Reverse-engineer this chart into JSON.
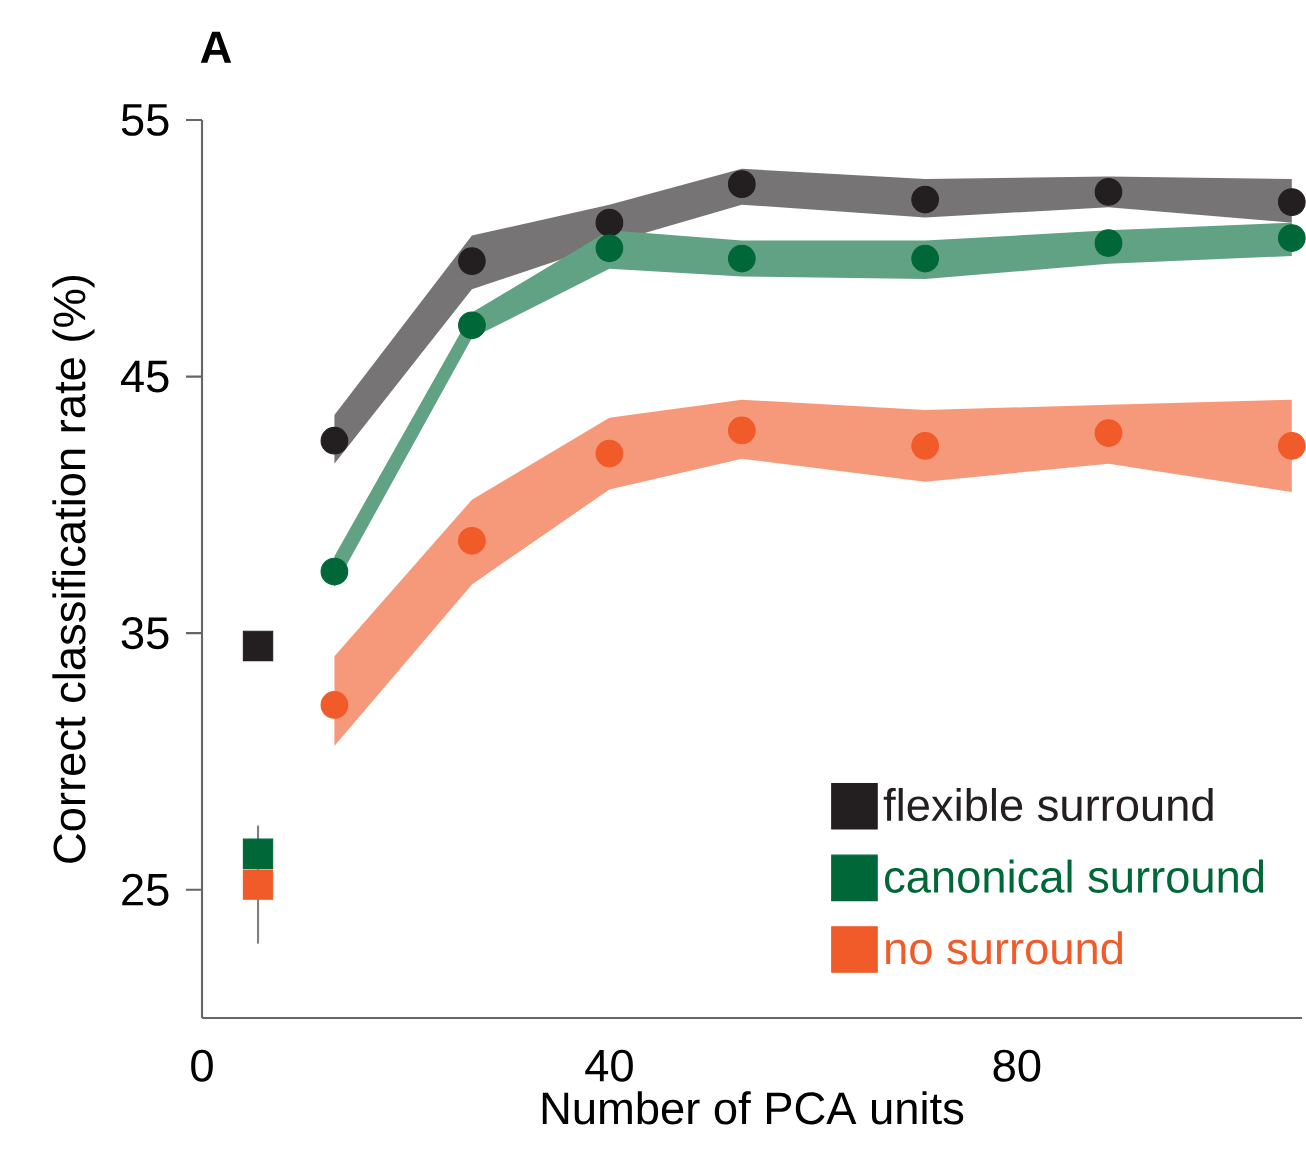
{
  "chart_data": {
    "type": "scatter",
    "title": "A",
    "xlabel": "Number of PCA units",
    "ylabel": "Correct classification rate (%)",
    "xlim": [
      0,
      108
    ],
    "xticks": [
      0,
      40,
      80
    ],
    "ylim": [
      20,
      55
    ],
    "yticks": [
      25,
      35,
      45,
      55
    ],
    "legend": "bottom right",
    "marker": "circle",
    "grid": false,
    "series": [
      {
        "name": "flexible surround",
        "color": "#231f20",
        "x": [
          13,
          26.5,
          40,
          53,
          71,
          89,
          107
        ],
        "values": [
          42.5,
          49.5,
          51.0,
          52.5,
          51.9,
          52.2,
          51.8
        ],
        "lower": [
          41.6,
          48.4,
          50.2,
          51.7,
          51.2,
          51.6,
          51.0
        ],
        "upper": [
          43.5,
          50.5,
          51.7,
          53.1,
          52.7,
          52.8,
          52.7
        ]
      },
      {
        "name": "canonical surround",
        "color": "#006838",
        "x": [
          13,
          26.5,
          40,
          53,
          71,
          89,
          107
        ],
        "values": [
          37.4,
          47.0,
          50.0,
          49.6,
          49.6,
          50.2,
          50.4
        ],
        "lower": [
          36.8,
          46.5,
          49.2,
          48.9,
          48.8,
          49.4,
          49.7
        ],
        "upper": [
          38.0,
          47.5,
          50.7,
          50.3,
          50.3,
          50.7,
          51.0
        ]
      },
      {
        "name": "no surround",
        "color": "#f15a29",
        "x": [
          13,
          26.5,
          40,
          53,
          71,
          89,
          107
        ],
        "values": [
          32.2,
          38.6,
          42.0,
          42.9,
          42.3,
          42.8,
          42.3
        ],
        "lower": [
          30.6,
          36.9,
          40.6,
          41.8,
          40.9,
          41.6,
          40.5
        ],
        "upper": [
          34.1,
          40.2,
          43.4,
          44.1,
          43.7,
          43.9,
          44.1
        ]
      },
      {
        "color": "#231f20",
        "marker": "square",
        "x": [
          5.5
        ],
        "values": [
          34.5
        ]
      },
      {
        "color": "#006838",
        "marker": "square",
        "x": [
          5.5
        ],
        "values": [
          26.4
        ]
      },
      {
        "color": "#f15a29",
        "marker": "square",
        "x": [
          5.5
        ],
        "values": [
          25.2
        ],
        "errors": [
          [
            22.9,
            27.5
          ]
        ]
      }
    ]
  }
}
